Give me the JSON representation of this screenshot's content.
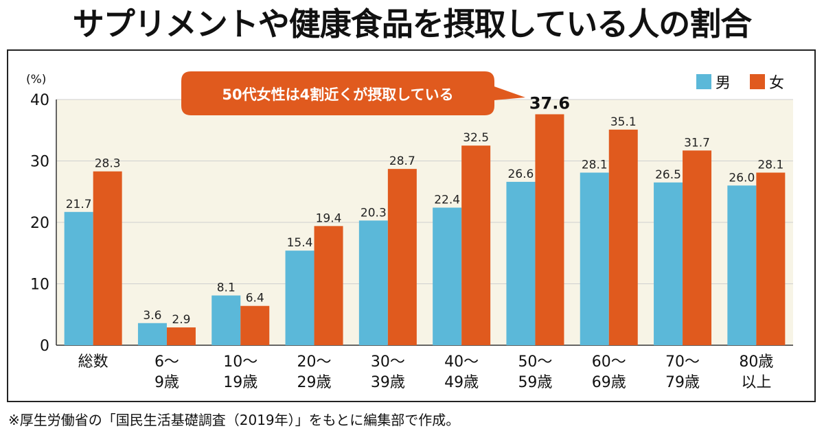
{
  "title": "サプリメントや健康食品を摂取している人の割合",
  "footnote": "※厚生労働省の「国民生活基礎調査（2019年）」をもとに編集部で作成。",
  "colors": {
    "male": "#5bb8d9",
    "female": "#e05a1e",
    "band": "#f7f4e6",
    "grid": "#cfcfcf"
  },
  "chart_data": {
    "type": "bar",
    "unit_label": "(%)",
    "ylim": [
      0,
      40
    ],
    "yticks": [
      0,
      10,
      20,
      30,
      40
    ],
    "grid": true,
    "legend_position": "top-right",
    "categories": [
      [
        "総数"
      ],
      [
        "6～",
        "9歳"
      ],
      [
        "10～",
        "19歳"
      ],
      [
        "20～",
        "29歳"
      ],
      [
        "30～",
        "39歳"
      ],
      [
        "40～",
        "49歳"
      ],
      [
        "50～",
        "59歳"
      ],
      [
        "60～",
        "69歳"
      ],
      [
        "70～",
        "79歳"
      ],
      [
        "80歳",
        "以上"
      ]
    ],
    "series": [
      {
        "name": "男",
        "values": [
          21.7,
          3.6,
          8.1,
          15.4,
          20.3,
          22.4,
          26.6,
          28.1,
          26.5,
          26.0
        ],
        "labels": [
          "21.7",
          "3.6",
          "8.1",
          "15.4",
          "20.3",
          "22.4",
          "26.6",
          "28.1",
          "26.5",
          "26.0"
        ]
      },
      {
        "name": "女",
        "values": [
          28.3,
          2.9,
          6.4,
          19.4,
          28.7,
          32.5,
          37.6,
          35.1,
          31.7,
          28.1
        ],
        "labels": [
          "28.3",
          "2.9",
          "6.4",
          "19.4",
          "28.7",
          "32.5",
          "37.6",
          "35.1",
          "31.7",
          "28.1"
        ]
      }
    ],
    "highlight_index": 6,
    "callout": "50代女性は4割近くが摂取している"
  }
}
